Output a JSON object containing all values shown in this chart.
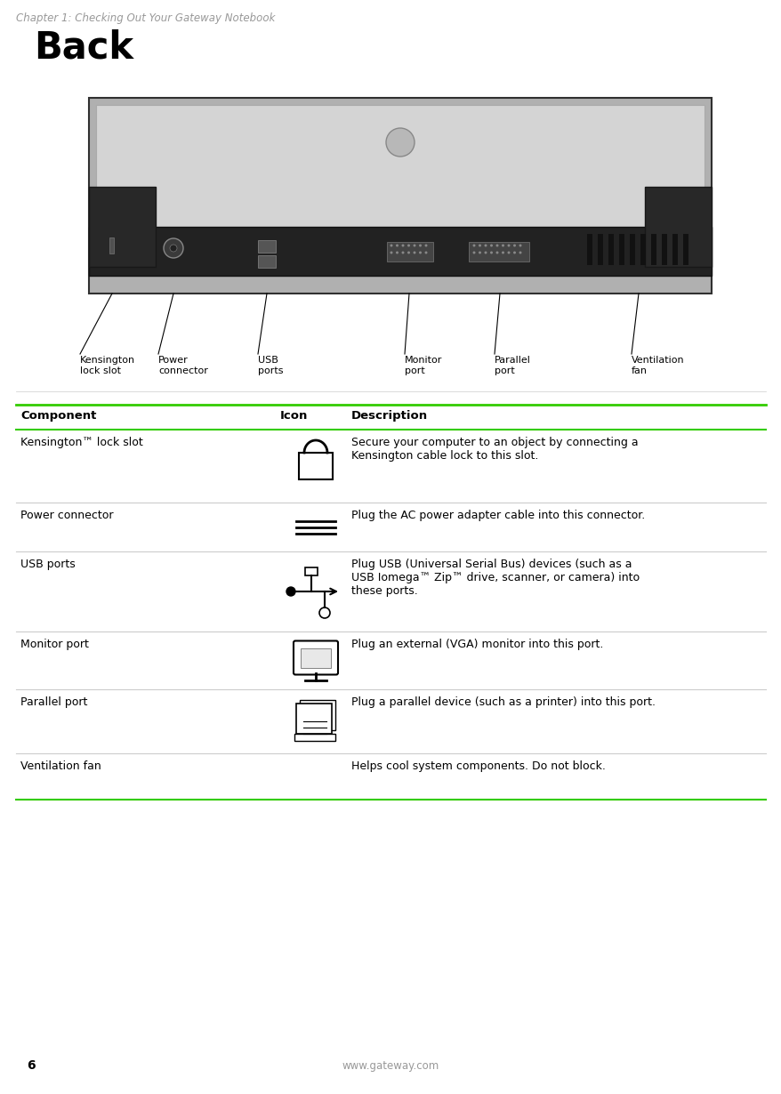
{
  "page_header": "Chapter 1: Checking Out Your Gateway Notebook",
  "header_color": "#999999",
  "section_title": "Back",
  "section_title_size": 30,
  "background_color": "#ffffff",
  "green_line_color": "#33cc00",
  "table_header_row": [
    "Component",
    "Icon",
    "Description"
  ],
  "table_rows": [
    {
      "component": "Kensington™ lock slot",
      "description": "Secure your computer to an object by connecting a\nKensington cable lock to this slot.",
      "icon_type": "kensington"
    },
    {
      "component": "Power connector",
      "description": "Plug the AC power adapter cable into this connector.",
      "icon_type": "power"
    },
    {
      "component": "USB ports",
      "description": "Plug USB (Universal Serial Bus) devices (such as a\nUSB Iomega™ Zip™ drive, scanner, or camera) into\nthese ports.",
      "icon_type": "usb"
    },
    {
      "component": "Monitor port",
      "description": "Plug an external (VGA) monitor into this port.",
      "icon_type": "monitor"
    },
    {
      "component": "Parallel port",
      "description": "Plug a parallel device (such as a printer) into this port.",
      "icon_type": "parallel"
    },
    {
      "component": "Ventilation fan",
      "description": "Helps cool system components. Do not block.",
      "icon_type": "none"
    }
  ],
  "footer_text": "www.gateway.com",
  "footer_page": "6",
  "text_color": "#000000",
  "label_fontsize": 8.0,
  "body_fontsize": 9.0,
  "header_fontsize": 9.5
}
